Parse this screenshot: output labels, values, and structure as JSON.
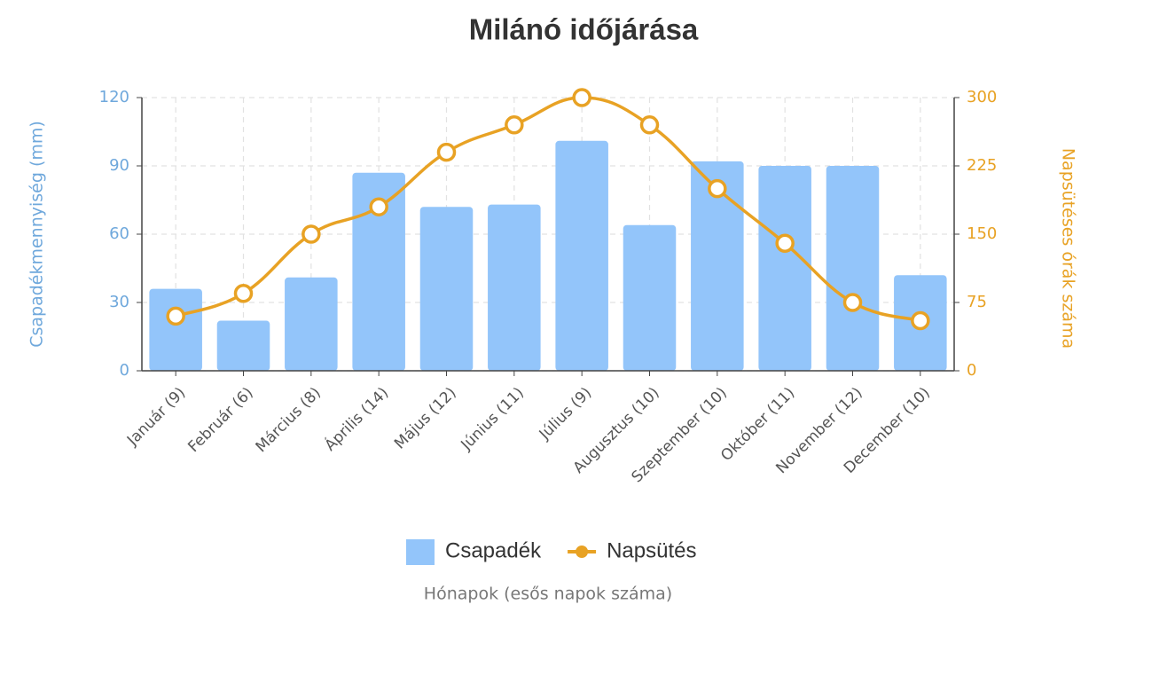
{
  "chart_data": {
    "type": "bar-line",
    "title": "Milánó időjárása",
    "x_label": "Hónapok (esős napok száma)",
    "y_label": "Csapadékmennyiség (mm)",
    "y2_label": "Napsütéses órák száma",
    "categories": [
      "Január (9)",
      "Február (6)",
      "Március (8)",
      "Április (14)",
      "Május (12)",
      "Június (11)",
      "Július (9)",
      "Augusztus (10)",
      "Szeptember (10)",
      "Október (11)",
      "November (12)",
      "December (10)"
    ],
    "series": [
      {
        "name": "Csapadék",
        "type": "bar",
        "color": "#93c5fa",
        "values": [
          36,
          22,
          41,
          87,
          72,
          73,
          101,
          64,
          92,
          90,
          90,
          42
        ]
      },
      {
        "name": "Napsütés",
        "type": "line",
        "axis": "y2",
        "color": "#e8a224",
        "values": [
          60,
          85,
          150,
          180,
          240,
          270,
          300,
          270,
          200,
          140,
          75,
          55
        ]
      }
    ],
    "ylim": [
      0,
      120
    ],
    "yticks": [
      0,
      30,
      60,
      90,
      120
    ],
    "y2lim": [
      0,
      300
    ],
    "y2ticks": [
      0,
      75,
      150,
      225,
      300
    ],
    "grid": true
  }
}
